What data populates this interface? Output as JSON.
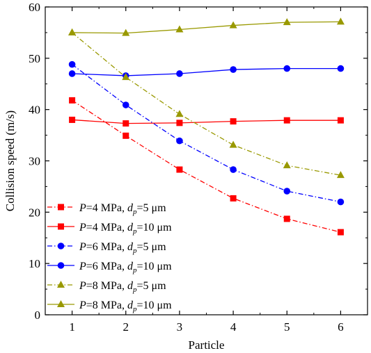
{
  "chart_data": {
    "type": "line",
    "xlabel": "Particle",
    "ylabel": "Collision speed (m/s)",
    "xlim": [
      0.5,
      6.5
    ],
    "ylim": [
      0,
      60
    ],
    "xticks": [
      "1",
      "2",
      "3",
      "4",
      "5",
      "6"
    ],
    "yticks": [
      "0",
      "10",
      "20",
      "30",
      "40",
      "50",
      "60"
    ],
    "x": [
      1,
      2,
      3,
      4,
      5,
      6
    ],
    "grid": false,
    "legend_position": "bottom-left",
    "series": [
      {
        "name": "P=4 MPa, dp=5 μm",
        "legend": {
          "p": "P",
          "a": "=4 MPa, ",
          "d": "d",
          "sub": "p",
          "b": "=5 μm"
        },
        "color": "#ff0000",
        "marker": "square",
        "line": "dashdot",
        "values": [
          41.8,
          34.9,
          28.3,
          22.7,
          18.7,
          16.1
        ]
      },
      {
        "name": "P=4 MPa, dp=10 μm",
        "legend": {
          "p": "P",
          "a": "=4 MPa, ",
          "d": "d",
          "sub": "p",
          "b": "=10 μm"
        },
        "color": "#ff0000",
        "marker": "square",
        "line": "solid",
        "values": [
          38.0,
          37.3,
          37.4,
          37.7,
          37.9,
          37.9
        ]
      },
      {
        "name": "P=6 MPa, dp=5 μm",
        "legend": {
          "p": "P",
          "a": "=6 MPa, ",
          "d": "d",
          "sub": "p",
          "b": "=5 μm"
        },
        "color": "#0000ff",
        "marker": "circle",
        "line": "dashdot",
        "values": [
          48.8,
          40.9,
          33.9,
          28.3,
          24.1,
          22.0
        ]
      },
      {
        "name": "P=6 MPa, dp=10 μm",
        "legend": {
          "p": "P",
          "a": "=6 MPa, ",
          "d": "d",
          "sub": "p",
          "b": "=10 μm"
        },
        "color": "#0000ff",
        "marker": "circle",
        "line": "solid",
        "values": [
          47.0,
          46.6,
          47.0,
          47.8,
          48.0,
          48.0
        ]
      },
      {
        "name": "P=8 MPa, dp=5 μm",
        "legend": {
          "p": "P",
          "a": "=8 MPa, ",
          "d": "d",
          "sub": "p",
          "b": "=5 μm"
        },
        "color": "#999900",
        "marker": "triangle",
        "line": "dashdot",
        "values": [
          55.0,
          46.3,
          39.1,
          33.1,
          29.1,
          27.2
        ]
      },
      {
        "name": "P=8 MPa, dp=10 μm",
        "legend": {
          "p": "P",
          "a": "=8 MPa, ",
          "d": "d",
          "sub": "p",
          "b": "=10 μm"
        },
        "color": "#999900",
        "marker": "triangle",
        "line": "solid",
        "values": [
          55.0,
          54.9,
          55.6,
          56.4,
          57.0,
          57.1
        ]
      }
    ]
  }
}
